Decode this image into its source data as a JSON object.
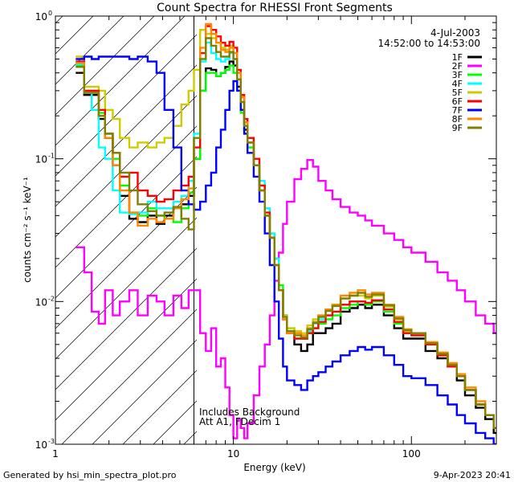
{
  "chart_data": {
    "type": "line",
    "title": "Count Spectra for RHESSI Front Segments",
    "xlabel": "Energy (keV)",
    "ylabel": "counts cm⁻² s⁻¹ keV⁻¹",
    "x_scale": "log",
    "y_scale": "log",
    "xlim": [
      1.0,
      300.0
    ],
    "ylim": [
      0.001,
      1.0
    ],
    "x_tick_labels": [
      {
        "value": 1,
        "label": "1"
      },
      {
        "value": 10,
        "label": "10"
      },
      {
        "value": 100,
        "label": "100"
      }
    ],
    "y_tick_labels": [
      {
        "exp": 0,
        "mantissa": "10",
        "sup": "0"
      },
      {
        "exp": -1,
        "mantissa": "10",
        "sup": "-1"
      },
      {
        "exp": -2,
        "mantissa": "10",
        "sup": "-2"
      },
      {
        "exp": -3,
        "mantissa": "10",
        "sup": "-3"
      }
    ],
    "date": "4-Jul-2003",
    "time_range": "14:52:00 to 14:53:00",
    "annotations": [
      "Includes Background",
      "Att A1, FDecim 1"
    ],
    "attenuator_cutoff_kev": 6.0,
    "hatched_region": [
      1.0,
      6.0
    ],
    "footer_left": "Generated by hsi_min_spectra_plot.pro",
    "footer_right": "9-Apr-2023 20:41",
    "series": [
      {
        "name": "1F",
        "color": "#000000",
        "x": [
          1.3,
          1.45,
          1.6,
          1.75,
          1.9,
          2.1,
          2.3,
          2.6,
          2.9,
          3.3,
          3.7,
          4.1,
          4.6,
          5.1,
          5.6,
          6.0,
          6.5,
          7.0,
          7.5,
          8.0,
          8.5,
          9.0,
          9.5,
          10.0,
          10.5,
          11.0,
          11.5,
          12.0,
          13.0,
          14.0,
          15.0,
          16.0,
          17.0,
          18.0,
          19.0,
          20.0,
          22.0,
          24.0,
          26.0,
          28.0,
          30.0,
          33.0,
          36.0,
          40.0,
          45.0,
          50.0,
          55.0,
          60.0,
          70.0,
          80.0,
          90.0,
          100.0,
          120.0,
          140.0,
          160.0,
          180.0,
          200.0,
          230.0,
          260.0,
          290.0
        ],
        "values": [
          0.4,
          0.28,
          0.28,
          0.19,
          0.14,
          0.09,
          0.055,
          0.038,
          0.036,
          0.04,
          0.035,
          0.04,
          0.045,
          0.048,
          0.055,
          0.1,
          0.3,
          0.43,
          0.42,
          0.38,
          0.4,
          0.44,
          0.48,
          0.45,
          0.32,
          0.22,
          0.16,
          0.13,
          0.09,
          0.06,
          0.04,
          0.028,
          0.02,
          0.012,
          0.008,
          0.006,
          0.005,
          0.0045,
          0.005,
          0.006,
          0.006,
          0.0065,
          0.007,
          0.0085,
          0.009,
          0.0095,
          0.009,
          0.0095,
          0.008,
          0.0065,
          0.0055,
          0.0055,
          0.0045,
          0.004,
          0.0035,
          0.0028,
          0.0022,
          0.0018,
          0.0015,
          0.0012
        ]
      },
      {
        "name": "2F",
        "color": "#ff00ff",
        "x": [
          1.3,
          1.45,
          1.6,
          1.75,
          1.9,
          2.1,
          2.3,
          2.6,
          2.9,
          3.3,
          3.7,
          4.1,
          4.6,
          5.1,
          5.6,
          6.0,
          6.5,
          7.0,
          7.5,
          8.0,
          8.5,
          9.0,
          9.5,
          10.0,
          10.5,
          11.0,
          11.5,
          12.0,
          13.0,
          14.0,
          15.0,
          16.0,
          17.0,
          18.0,
          19.0,
          20.0,
          22.0,
          24.0,
          26.0,
          28.0,
          30.0,
          33.0,
          36.0,
          40.0,
          45.0,
          50.0,
          55.0,
          60.0,
          70.0,
          80.0,
          90.0,
          100.0,
          120.0,
          140.0,
          160.0,
          180.0,
          200.0,
          230.0,
          260.0,
          290.0
        ],
        "values": [
          0.024,
          0.016,
          0.0085,
          0.007,
          0.012,
          0.008,
          0.01,
          0.012,
          0.008,
          0.011,
          0.01,
          0.008,
          0.011,
          0.009,
          0.012,
          0.012,
          0.006,
          0.0045,
          0.0065,
          0.0035,
          0.004,
          0.0025,
          0.0016,
          0.0011,
          0.0015,
          0.0013,
          0.0011,
          0.0014,
          0.0022,
          0.0035,
          0.005,
          0.008,
          0.014,
          0.022,
          0.035,
          0.05,
          0.072,
          0.085,
          0.098,
          0.088,
          0.07,
          0.06,
          0.052,
          0.046,
          0.042,
          0.04,
          0.037,
          0.034,
          0.03,
          0.027,
          0.024,
          0.022,
          0.019,
          0.016,
          0.014,
          0.012,
          0.01,
          0.008,
          0.007,
          0.006
        ]
      },
      {
        "name": "3F",
        "color": "#00ff00",
        "x": [
          1.3,
          1.45,
          1.6,
          1.75,
          1.9,
          2.1,
          2.3,
          2.6,
          2.9,
          3.3,
          3.7,
          4.1,
          4.6,
          5.1,
          5.6,
          6.0,
          6.5,
          7.0,
          7.5,
          8.0,
          8.5,
          9.0,
          9.5,
          10.0,
          10.5,
          11.0,
          11.5,
          12.0,
          13.0,
          14.0,
          15.0,
          16.0,
          17.0,
          18.0,
          19.0,
          20.0,
          22.0,
          24.0,
          26.0,
          28.0,
          30.0,
          33.0,
          36.0,
          40.0,
          45.0,
          50.0,
          55.0,
          60.0,
          70.0,
          80.0,
          90.0,
          100.0,
          120.0,
          140.0,
          160.0,
          180.0,
          200.0,
          230.0,
          260.0,
          290.0
        ],
        "values": [
          0.45,
          0.3,
          0.3,
          0.21,
          0.15,
          0.1,
          0.065,
          0.042,
          0.04,
          0.045,
          0.04,
          0.038,
          0.036,
          0.045,
          0.058,
          0.1,
          0.3,
          0.4,
          0.4,
          0.38,
          0.4,
          0.42,
          0.45,
          0.4,
          0.3,
          0.21,
          0.15,
          0.12,
          0.09,
          0.065,
          0.045,
          0.03,
          0.02,
          0.013,
          0.008,
          0.0065,
          0.006,
          0.0055,
          0.006,
          0.0065,
          0.007,
          0.0075,
          0.008,
          0.009,
          0.0095,
          0.01,
          0.0095,
          0.01,
          0.0085,
          0.007,
          0.006,
          0.0058,
          0.005,
          0.0042,
          0.0036,
          0.003,
          0.0024,
          0.0019,
          0.0016,
          0.0013
        ]
      },
      {
        "name": "4F",
        "color": "#00ffff",
        "x": [
          1.3,
          1.45,
          1.6,
          1.75,
          1.9,
          2.1,
          2.3,
          2.6,
          2.9,
          3.3,
          3.7,
          4.1,
          4.6,
          5.1,
          5.6,
          6.0,
          6.5,
          7.0,
          7.5,
          8.0,
          8.5,
          9.0,
          9.5,
          10.0,
          10.5,
          11.0,
          11.5,
          12.0,
          13.0,
          14.0,
          15.0,
          16.0,
          17.0,
          18.0,
          19.0,
          20.0,
          22.0,
          24.0,
          26.0,
          28.0,
          30.0,
          33.0,
          36.0,
          40.0,
          45.0,
          50.0,
          55.0,
          60.0,
          70.0,
          80.0,
          90.0,
          100.0,
          120.0,
          140.0,
          160.0,
          180.0,
          200.0,
          230.0,
          260.0,
          290.0
        ],
        "values": [
          0.46,
          0.3,
          0.22,
          0.12,
          0.1,
          0.06,
          0.042,
          0.041,
          0.042,
          0.05,
          0.045,
          0.045,
          0.05,
          0.055,
          0.07,
          0.15,
          0.48,
          0.65,
          0.55,
          0.5,
          0.48,
          0.5,
          0.55,
          0.5,
          0.36,
          0.25,
          0.18,
          0.14,
          0.1,
          0.07,
          0.045,
          0.03,
          0.02,
          0.012,
          0.008,
          0.006,
          0.0055,
          0.0055,
          0.0062,
          0.007,
          0.0075,
          0.008,
          0.0085,
          0.0095,
          0.01,
          0.01,
          0.0098,
          0.0102,
          0.0088,
          0.0072,
          0.006,
          0.0058,
          0.005,
          0.0042,
          0.0035,
          0.003,
          0.0024,
          0.0019,
          0.0016,
          0.0013
        ]
      },
      {
        "name": "5F",
        "color": "#cccc00",
        "x": [
          1.3,
          1.45,
          1.6,
          1.75,
          1.9,
          2.1,
          2.3,
          2.6,
          2.9,
          3.3,
          3.7,
          4.1,
          4.6,
          5.1,
          5.6,
          6.0,
          6.5,
          7.0,
          7.5,
          8.0,
          8.5,
          9.0,
          9.5,
          10.0,
          10.5,
          11.0,
          11.5,
          12.0,
          13.0,
          14.0,
          15.0,
          16.0,
          17.0,
          18.0,
          19.0,
          20.0,
          22.0,
          24.0,
          26.0,
          28.0,
          30.0,
          33.0,
          36.0,
          40.0,
          45.0,
          50.0,
          55.0,
          60.0,
          70.0,
          80.0,
          90.0,
          100.0,
          120.0,
          140.0,
          160.0,
          180.0,
          200.0,
          230.0,
          260.0,
          290.0
        ],
        "values": [
          0.52,
          0.32,
          0.32,
          0.3,
          0.22,
          0.19,
          0.14,
          0.12,
          0.13,
          0.12,
          0.13,
          0.14,
          0.17,
          0.24,
          0.3,
          0.42,
          0.8,
          0.75,
          0.7,
          0.65,
          0.6,
          0.58,
          0.62,
          0.55,
          0.4,
          0.27,
          0.18,
          0.13,
          0.09,
          0.06,
          0.04,
          0.028,
          0.018,
          0.012,
          0.008,
          0.0065,
          0.0062,
          0.006,
          0.0068,
          0.0075,
          0.008,
          0.0088,
          0.0095,
          0.0105,
          0.011,
          0.011,
          0.0105,
          0.011,
          0.0092,
          0.0075,
          0.0062,
          0.006,
          0.005,
          0.0043,
          0.0036,
          0.003,
          0.0024,
          0.0019,
          0.0016,
          0.0013
        ]
      },
      {
        "name": "6F",
        "color": "#ff0000",
        "x": [
          1.3,
          1.45,
          1.6,
          1.75,
          1.9,
          2.1,
          2.3,
          2.6,
          2.9,
          3.3,
          3.7,
          4.1,
          4.6,
          5.1,
          5.6,
          6.0,
          6.5,
          7.0,
          7.5,
          8.0,
          8.5,
          9.0,
          9.5,
          10.0,
          10.5,
          11.0,
          11.5,
          12.0,
          13.0,
          14.0,
          15.0,
          16.0,
          17.0,
          18.0,
          19.0,
          20.0,
          22.0,
          24.0,
          26.0,
          28.0,
          30.0,
          33.0,
          36.0,
          40.0,
          45.0,
          50.0,
          55.0,
          60.0,
          70.0,
          80.0,
          90.0,
          100.0,
          120.0,
          140.0,
          160.0,
          180.0,
          200.0,
          230.0,
          260.0,
          290.0
        ],
        "values": [
          0.48,
          0.3,
          0.3,
          0.22,
          0.15,
          0.11,
          0.075,
          0.08,
          0.06,
          0.055,
          0.05,
          0.052,
          0.06,
          0.065,
          0.075,
          0.12,
          0.55,
          0.85,
          0.8,
          0.72,
          0.65,
          0.62,
          0.66,
          0.6,
          0.42,
          0.28,
          0.19,
          0.14,
          0.1,
          0.065,
          0.042,
          0.028,
          0.018,
          0.012,
          0.0075,
          0.006,
          0.0055,
          0.0055,
          0.006,
          0.0065,
          0.0072,
          0.008,
          0.0085,
          0.0095,
          0.01,
          0.01,
          0.0098,
          0.0102,
          0.0088,
          0.0072,
          0.006,
          0.0058,
          0.005,
          0.0042,
          0.0035,
          0.003,
          0.0024,
          0.0019,
          0.0016,
          0.0013
        ]
      },
      {
        "name": "7F",
        "color": "#0000ff",
        "x": [
          1.3,
          1.45,
          1.6,
          1.75,
          1.9,
          2.1,
          2.3,
          2.6,
          2.9,
          3.3,
          3.7,
          4.1,
          4.6,
          5.1,
          5.6,
          6.0,
          6.5,
          7.0,
          7.5,
          8.0,
          8.5,
          9.0,
          9.5,
          10.0,
          10.5,
          11.0,
          11.5,
          12.0,
          13.0,
          14.0,
          15.0,
          16.0,
          17.0,
          18.0,
          19.0,
          20.0,
          22.0,
          24.0,
          26.0,
          28.0,
          30.0,
          33.0,
          36.0,
          40.0,
          45.0,
          50.0,
          55.0,
          60.0,
          70.0,
          80.0,
          90.0,
          100.0,
          120.0,
          140.0,
          160.0,
          180.0,
          200.0,
          230.0,
          260.0,
          290.0
        ],
        "values": [
          0.5,
          0.52,
          0.5,
          0.52,
          0.52,
          0.52,
          0.52,
          0.5,
          0.52,
          0.48,
          0.4,
          0.22,
          0.12,
          0.06,
          0.048,
          0.044,
          0.05,
          0.065,
          0.08,
          0.12,
          0.16,
          0.22,
          0.3,
          0.35,
          0.3,
          0.22,
          0.15,
          0.11,
          0.075,
          0.05,
          0.03,
          0.018,
          0.01,
          0.0055,
          0.0035,
          0.0028,
          0.0026,
          0.0024,
          0.0028,
          0.003,
          0.0032,
          0.0035,
          0.0038,
          0.0042,
          0.0045,
          0.0048,
          0.0046,
          0.0048,
          0.0042,
          0.0036,
          0.003,
          0.0029,
          0.0026,
          0.0022,
          0.0019,
          0.0016,
          0.0014,
          0.0012,
          0.0011,
          0.001
        ]
      },
      {
        "name": "8F",
        "color": "#ff8800",
        "x": [
          1.3,
          1.45,
          1.6,
          1.75,
          1.9,
          2.1,
          2.3,
          2.6,
          2.9,
          3.3,
          3.7,
          4.1,
          4.6,
          5.1,
          5.6,
          6.0,
          6.5,
          7.0,
          7.5,
          8.0,
          8.5,
          9.0,
          9.5,
          10.0,
          10.5,
          11.0,
          11.5,
          12.0,
          13.0,
          14.0,
          15.0,
          16.0,
          17.0,
          18.0,
          19.0,
          20.0,
          22.0,
          24.0,
          26.0,
          28.0,
          30.0,
          33.0,
          36.0,
          40.0,
          45.0,
          50.0,
          55.0,
          60.0,
          70.0,
          80.0,
          90.0,
          100.0,
          120.0,
          140.0,
          160.0,
          180.0,
          200.0,
          230.0,
          260.0,
          290.0
        ],
        "values": [
          0.47,
          0.29,
          0.29,
          0.2,
          0.14,
          0.09,
          0.06,
          0.042,
          0.034,
          0.038,
          0.036,
          0.038,
          0.045,
          0.052,
          0.062,
          0.14,
          0.6,
          0.88,
          0.75,
          0.65,
          0.58,
          0.56,
          0.6,
          0.55,
          0.4,
          0.27,
          0.18,
          0.13,
          0.09,
          0.06,
          0.04,
          0.028,
          0.018,
          0.012,
          0.0075,
          0.006,
          0.006,
          0.0058,
          0.0065,
          0.0072,
          0.008,
          0.0088,
          0.0095,
          0.011,
          0.0115,
          0.012,
          0.0112,
          0.0115,
          0.0095,
          0.0078,
          0.0064,
          0.006,
          0.0052,
          0.0044,
          0.0037,
          0.0031,
          0.0025,
          0.002,
          0.0016,
          0.0013
        ]
      },
      {
        "name": "9F",
        "color": "#808000",
        "x": [
          1.3,
          1.45,
          1.6,
          1.75,
          1.9,
          2.1,
          2.3,
          2.6,
          2.9,
          3.3,
          3.7,
          4.1,
          4.6,
          5.1,
          5.6,
          6.0,
          6.5,
          7.0,
          7.5,
          8.0,
          8.5,
          9.0,
          9.5,
          10.0,
          10.5,
          11.0,
          11.5,
          12.0,
          13.0,
          14.0,
          15.0,
          16.0,
          17.0,
          18.0,
          19.0,
          20.0,
          22.0,
          24.0,
          26.0,
          28.0,
          30.0,
          33.0,
          36.0,
          40.0,
          45.0,
          50.0,
          55.0,
          60.0,
          70.0,
          80.0,
          90.0,
          100.0,
          120.0,
          140.0,
          160.0,
          180.0,
          200.0,
          230.0,
          260.0,
          290.0
        ],
        "values": [
          0.44,
          0.29,
          0.29,
          0.2,
          0.15,
          0.11,
          0.08,
          0.06,
          0.048,
          0.043,
          0.04,
          0.042,
          0.046,
          0.038,
          0.032,
          0.14,
          0.5,
          0.7,
          0.62,
          0.56,
          0.52,
          0.52,
          0.56,
          0.5,
          0.36,
          0.25,
          0.17,
          0.13,
          0.09,
          0.06,
          0.04,
          0.028,
          0.018,
          0.012,
          0.0078,
          0.0062,
          0.0058,
          0.0056,
          0.0064,
          0.0071,
          0.0078,
          0.0086,
          0.0093,
          0.0105,
          0.011,
          0.0115,
          0.0108,
          0.0112,
          0.0094,
          0.0076,
          0.0063,
          0.006,
          0.0051,
          0.0043,
          0.0036,
          0.003,
          0.0024,
          0.0019,
          0.0016,
          0.0013
        ]
      }
    ]
  }
}
